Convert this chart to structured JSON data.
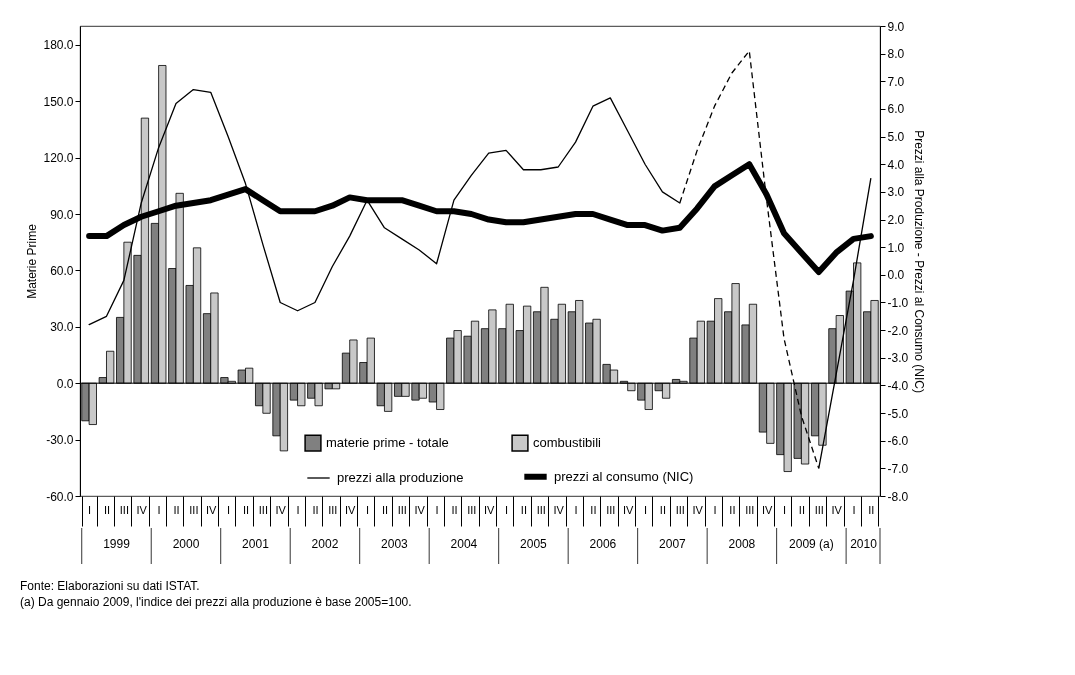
{
  "chart_data": {
    "type": "bar",
    "ylabel": "Materie Prime",
    "y2label": "Prezzi alla Produzione - Prezzi al Consumo (NIC)",
    "categories": [
      "I",
      "II",
      "III",
      "IV",
      "I",
      "II",
      "III",
      "IV",
      "I",
      "II",
      "III",
      "IV",
      "I",
      "II",
      "III",
      "IV",
      "I",
      "II",
      "III",
      "IV",
      "I",
      "II",
      "III",
      "IV",
      "I",
      "II",
      "III",
      "IV",
      "I",
      "II",
      "III",
      "IV",
      "I",
      "II",
      "III",
      "IV",
      "I",
      "II",
      "III",
      "IV",
      "I",
      "II",
      "III",
      "IV",
      "I",
      "II"
    ],
    "ylim": [
      -60,
      190
    ],
    "yticks": [
      {
        "value": -60,
        "label": "-60.0"
      },
      {
        "value": -30,
        "label": "-30.0"
      },
      {
        "value": 0,
        "label": "0.0"
      },
      {
        "value": 30,
        "label": "30.0"
      },
      {
        "value": 60,
        "label": "60.0"
      },
      {
        "value": 90,
        "label": "90.0"
      },
      {
        "value": 120,
        "label": "120.0"
      },
      {
        "value": 150,
        "label": "150.0"
      },
      {
        "value": 180,
        "label": "180.0"
      }
    ],
    "y2lim": [
      -8,
      9
    ],
    "y2ticks": [
      {
        "value": -8,
        "label": "-8.0"
      },
      {
        "value": -7,
        "label": "-7.0"
      },
      {
        "value": -6,
        "label": "-6.0"
      },
      {
        "value": -5,
        "label": "-5.0"
      },
      {
        "value": -4,
        "label": "-4.0"
      },
      {
        "value": -3,
        "label": "-3.0"
      },
      {
        "value": -2,
        "label": "-2.0"
      },
      {
        "value": -1,
        "label": "-1.0"
      },
      {
        "value": 0,
        "label": "0.0"
      },
      {
        "value": 1,
        "label": "1.0"
      },
      {
        "value": 2,
        "label": "2.0"
      },
      {
        "value": 3,
        "label": "3.0"
      },
      {
        "value": 4,
        "label": "4.0"
      },
      {
        "value": 5,
        "label": "5.0"
      },
      {
        "value": 6,
        "label": "6.0"
      },
      {
        "value": 7,
        "label": "7.0"
      },
      {
        "value": 8,
        "label": "8.0"
      },
      {
        "value": 9,
        "label": "9.0"
      }
    ],
    "series": [
      {
        "name": "materie prime - totale",
        "type": "bar",
        "color": "#808080",
        "values": [
          -20,
          3,
          35,
          68,
          85,
          61,
          52,
          37,
          3,
          7,
          -12,
          -28,
          -9,
          -8,
          -3,
          16,
          11,
          -12,
          -7,
          -9,
          -10,
          24,
          25,
          29,
          29,
          28,
          38,
          34,
          38,
          32,
          10,
          1,
          -9,
          -4,
          2,
          24,
          33,
          38,
          31,
          -26,
          -38,
          -40,
          -28,
          29,
          49,
          38
        ]
      },
      {
        "name": "combustibili",
        "type": "bar",
        "color": "#c8c8c8",
        "values": [
          -22,
          17,
          75,
          141,
          169,
          101,
          72,
          48,
          1,
          8,
          -16,
          -36,
          -12,
          -12,
          -3,
          23,
          24,
          -15,
          -7,
          -8,
          -14,
          28,
          33,
          39,
          42,
          41,
          51,
          42,
          44,
          34,
          7,
          -4,
          -14,
          -8,
          1,
          33,
          45,
          53,
          42,
          -32,
          -47,
          -43,
          -33,
          36,
          64,
          44
        ]
      },
      {
        "name": "prezzi alla produzione",
        "type": "line",
        "axis": "y2",
        "color": "#000000",
        "line_style": "solid",
        "values": [
          -1.8,
          -1.5,
          -0.2,
          2.6,
          4.6,
          6.2,
          6.7,
          6.6,
          5.0,
          3.3,
          1.1,
          -1.0,
          -1.3,
          -1.0,
          0.3,
          1.4,
          2.7,
          1.7,
          1.3,
          0.9,
          0.4,
          2.7,
          3.6,
          4.4,
          4.5,
          3.8,
          3.8,
          3.9,
          4.8,
          6.1,
          6.4,
          5.2,
          4.0,
          3.0,
          2.6,
          null,
          null,
          null,
          null,
          null,
          null,
          null,
          null,
          null,
          null,
          null
        ]
      },
      {
        "type": "line",
        "axis": "y2",
        "color": "#000000",
        "line_style": "dashed",
        "values": [
          null,
          null,
          null,
          null,
          null,
          null,
          null,
          null,
          null,
          null,
          null,
          null,
          null,
          null,
          null,
          null,
          null,
          null,
          null,
          null,
          null,
          null,
          null,
          null,
          null,
          null,
          null,
          null,
          null,
          null,
          null,
          null,
          null,
          null,
          2.6,
          4.5,
          6.1,
          7.3,
          8.1,
          2.7,
          -2.3,
          -5.1,
          -7.0,
          null,
          null,
          null
        ]
      },
      {
        "type": "line",
        "axis": "y2",
        "color": "#000000",
        "line_style": "solid",
        "values": [
          null,
          null,
          null,
          null,
          null,
          null,
          null,
          null,
          null,
          null,
          null,
          null,
          null,
          null,
          null,
          null,
          null,
          null,
          null,
          null,
          null,
          null,
          null,
          null,
          null,
          null,
          null,
          null,
          null,
          null,
          null,
          null,
          null,
          null,
          null,
          null,
          null,
          null,
          null,
          null,
          null,
          null,
          -7.0,
          -3.6,
          -0.2,
          3.5
        ]
      },
      {
        "name": "prezzi al consumo (NIC)",
        "type": "line",
        "axis": "y2",
        "color": "#000000",
        "line_style": "solid",
        "values": [
          1.4,
          1.4,
          1.8,
          2.1,
          2.3,
          2.5,
          2.6,
          2.7,
          2.9,
          3.1,
          2.7,
          2.3,
          2.3,
          2.3,
          2.5,
          2.8,
          2.7,
          2.7,
          2.7,
          2.5,
          2.3,
          2.3,
          2.2,
          2.0,
          1.9,
          1.9,
          2.0,
          2.1,
          2.2,
          2.2,
          2.0,
          1.8,
          1.8,
          1.6,
          1.7,
          2.4,
          3.2,
          3.6,
          4.0,
          2.9,
          1.5,
          0.8,
          0.1,
          0.8,
          1.3,
          1.4
        ]
      }
    ],
    "ref_lines": [
      {
        "axis": "y",
        "value": 0,
        "color": "#000000"
      }
    ],
    "legend": "bottom",
    "grid": false,
    "annotations": [
      "1999",
      "2000",
      "2001",
      "2002",
      "2003",
      "2004",
      "2005",
      "2006",
      "2007",
      "2008",
      "2009  (a)",
      "2010",
      "Fonte: Elaborazioni su dati ISTAT.",
      "(a) Da gennaio 2009, l'indice dei prezzi alla produzione è base 2005=100."
    ]
  }
}
